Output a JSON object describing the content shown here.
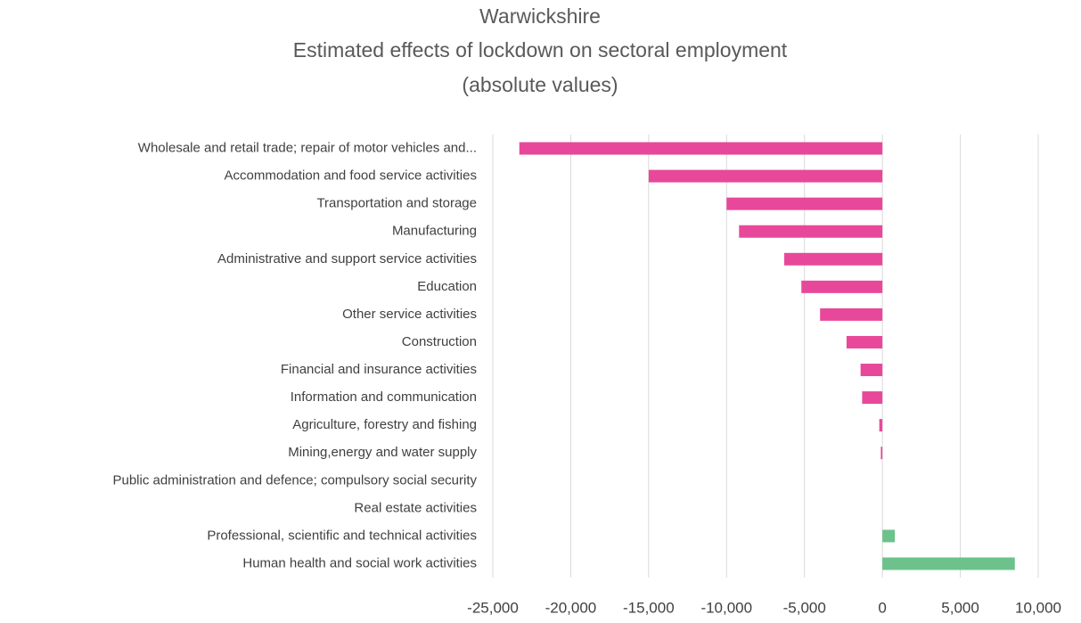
{
  "chart_data": {
    "type": "hbar",
    "title": [
      "Warwickshire",
      "Estimated effects of lockdown on sectoral employment",
      "(absolute values)"
    ],
    "categories": [
      "Wholesale and retail trade; repair of motor vehicles and...",
      "Accommodation and food service activities",
      "Transportation and storage",
      "Manufacturing",
      "Administrative and support service activities",
      "Education",
      "Other service activities",
      "Construction",
      "Financial and insurance activities",
      "Information and communication",
      "Agriculture, forestry and fishing",
      "Mining,energy and water supply",
      "Public administration and defence; compulsory social security",
      "Real estate activities",
      "Professional, scientific and technical activities",
      "Human health and social work activities"
    ],
    "values": [
      -23300,
      -15000,
      -10000,
      -9200,
      -6300,
      -5200,
      -4000,
      -2300,
      -1400,
      -1300,
      -200,
      -100,
      0,
      0,
      800,
      8500
    ],
    "negative_color": "#e8489a",
    "positive_color": "#6cc28a",
    "xlim": [
      -25000,
      10000
    ],
    "xticks": [
      {
        "value": -25000,
        "label": "-25,000"
      },
      {
        "value": -20000,
        "label": "-20,000"
      },
      {
        "value": -15000,
        "label": "-15,000"
      },
      {
        "value": -10000,
        "label": "-10,000"
      },
      {
        "value": -5000,
        "label": "-5,000"
      },
      0,
      {
        "value": 5000,
        "label": "5,000"
      },
      {
        "value": 10000,
        "label": "10,000"
      }
    ],
    "grid": true
  }
}
